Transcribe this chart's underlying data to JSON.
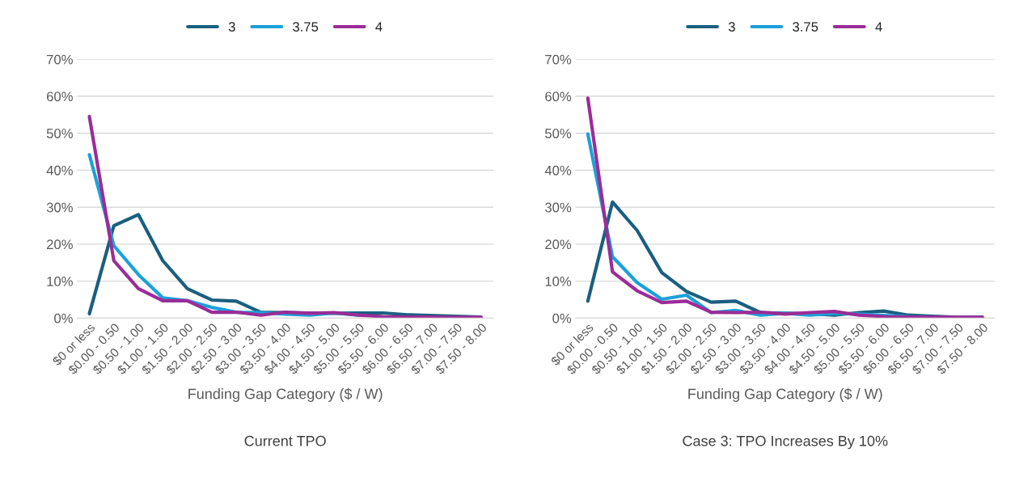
{
  "chart_data": [
    {
      "type": "line",
      "title": "Current TPO",
      "xlabel": "Funding Gap Category ($ / W)",
      "categories": [
        "$0 or less",
        "$0.00 - 0.50",
        "$0.50 - 1.00",
        "$1.00 - 1.50",
        "$1.50 - 2.00",
        "$2.00 - 2.50",
        "$2.50 - 3.00",
        "$3.00 - 3.50",
        "$3.50 - 4.00",
        "$4.00 - 4.50",
        "$4.50 - 5.00",
        "$5.00 - 5.50",
        "$5.50 - 6.00",
        "$6.00 - 6.50",
        "$6.50 - 7.00",
        "$7.00 - 7.50",
        "$7.50 - 8.00"
      ],
      "series": [
        {
          "name": "3",
          "color": "#1b5f80",
          "values": [
            1.2,
            25,
            28,
            15.5,
            8,
            4.9,
            4.6,
            1.6,
            1.5,
            1.4,
            1.3,
            1.4,
            1.4,
            0.9,
            null,
            null,
            0.3
          ]
        },
        {
          "name": "3.75",
          "color": "#1ba1d8",
          "values": [
            44.2,
            19.6,
            11.8,
            5.5,
            4.7,
            2.9,
            1.6,
            1.5,
            1.1,
            0.8,
            1.4,
            0.8,
            null,
            null,
            null,
            null,
            null
          ]
        },
        {
          "name": "4",
          "color": "#9b2c98",
          "values": [
            54.5,
            15.5,
            8,
            4.7,
            4.7,
            1.6,
            1.6,
            0.8,
            1.6,
            1.3,
            1.5,
            0.8,
            0.4,
            0.3,
            0.3,
            0.2,
            0.2
          ]
        }
      ],
      "ylim": [
        0,
        70
      ],
      "yticks": [
        {
          "value": 0,
          "label": "0%"
        },
        {
          "value": 10,
          "label": "10%"
        },
        {
          "value": 20,
          "label": "20%"
        },
        {
          "value": 30,
          "label": "30%"
        },
        {
          "value": 40,
          "label": "40%"
        },
        {
          "value": 50,
          "label": "50%"
        },
        {
          "value": 60,
          "label": "60%"
        },
        {
          "value": 70,
          "label": "70%"
        }
      ],
      "grid": "y",
      "legend": "top",
      "marker": "none",
      "line_style": "solid"
    },
    {
      "type": "line",
      "title": "Case 3: TPO Increases By 10%",
      "xlabel": "Funding Gap Category ($ / W)",
      "categories": [
        "$0 or less",
        "$0.00 - 0.50",
        "$0.50 - 1.00",
        "$1.00 - 1.50",
        "$1.50 - 2.00",
        "$2.00 - 2.50",
        "$2.50 - 3.00",
        "$3.00 - 3.50",
        "$3.50 - 4.00",
        "$4.00 - 4.50",
        "$4.50 - 5.00",
        "$5.00 - 5.50",
        "$5.50 - 6.00",
        "$6.00 - 6.50",
        "$6.50 - 7.00",
        "$7.00 - 7.50",
        "$7.50 - 8.00"
      ],
      "series": [
        {
          "name": "3",
          "color": "#1b5f80",
          "values": [
            4.6,
            31.4,
            23.7,
            12.3,
            7.2,
            4.3,
            4.6,
            1.5,
            1.3,
            1.2,
            0.8,
            1.5,
            1.9,
            0.8,
            0.5,
            0.2,
            0.3
          ]
        },
        {
          "name": "3.75",
          "color": "#1ba1d8",
          "values": [
            49.8,
            16.6,
            9.6,
            5.1,
            6.2,
            1.5,
            2.1,
            0.8,
            1.3,
            0.8,
            1.3,
            1.1,
            0.7,
            0.4,
            0.3,
            null,
            null
          ]
        },
        {
          "name": "4",
          "color": "#9b2c98",
          "values": [
            59.5,
            12.5,
            7.4,
            4.2,
            4.6,
            1.6,
            1.5,
            1.6,
            1.1,
            1.5,
            1.8,
            0.8,
            0.4,
            0.3,
            0.3,
            0.2,
            0.2
          ]
        }
      ],
      "ylim": [
        0,
        70
      ],
      "yticks": [
        {
          "value": 0,
          "label": "0%"
        },
        {
          "value": 10,
          "label": "10%"
        },
        {
          "value": 20,
          "label": "20%"
        },
        {
          "value": 30,
          "label": "30%"
        },
        {
          "value": 40,
          "label": "40%"
        },
        {
          "value": 50,
          "label": "50%"
        },
        {
          "value": 60,
          "label": "60%"
        },
        {
          "value": 70,
          "label": "70%"
        }
      ],
      "grid": "y",
      "legend": "top",
      "marker": "none",
      "line_style": "solid"
    }
  ]
}
